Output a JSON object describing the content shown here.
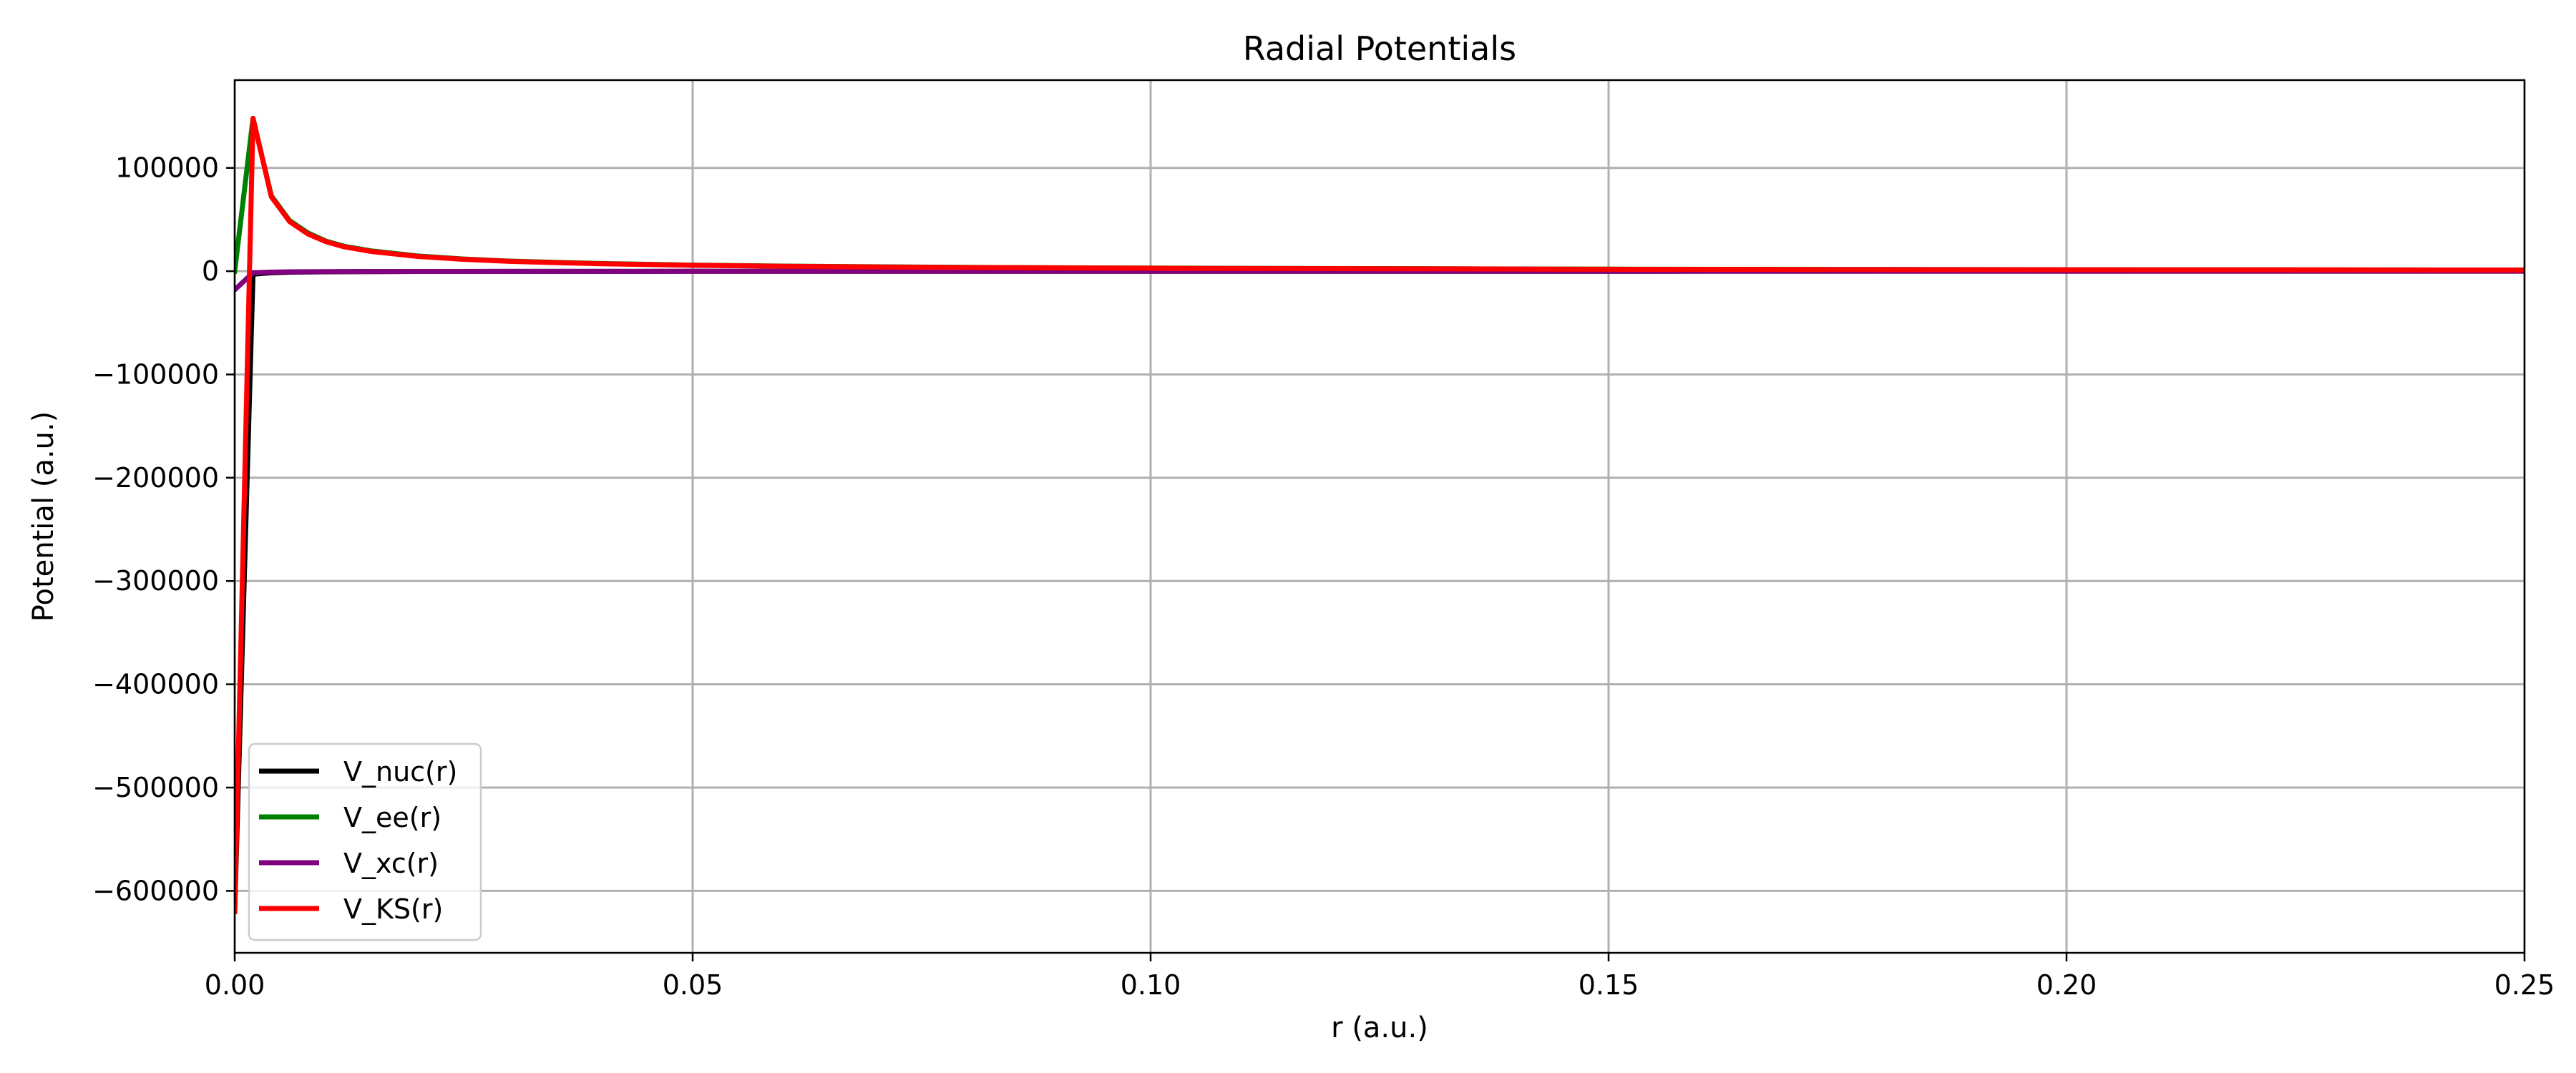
{
  "chart_data": {
    "type": "line",
    "title": "Radial Potentials",
    "xlabel": "r (a.u.)",
    "ylabel": "Potential (a.u.)",
    "xlim": [
      0.0,
      0.25
    ],
    "ylim": [
      -660000,
      185000
    ],
    "xticks": [
      0.0,
      0.05,
      0.1,
      0.15,
      0.2,
      0.25
    ],
    "xtick_labels": [
      "0.00",
      "0.05",
      "0.10",
      "0.15",
      "0.20",
      "0.25"
    ],
    "yticks": [
      100000,
      0,
      -100000,
      -200000,
      -300000,
      -400000,
      -500000,
      -600000
    ],
    "ytick_labels": [
      "100000",
      "0",
      "−100000",
      "−200000",
      "−300000",
      "−400000",
      "−500000",
      "−600000"
    ],
    "grid": true,
    "legend_position": "lower-left",
    "series": [
      {
        "name": "V_nuc(r)",
        "color": "#000000",
        "x": [
          0.0,
          0.002,
          0.004,
          0.006,
          0.008,
          0.01,
          0.015,
          0.02,
          0.03,
          0.05,
          0.1,
          0.15,
          0.2,
          0.25
        ],
        "y": [
          -620000,
          -3000,
          -1500,
          -1000,
          -750,
          -600,
          -400,
          -300,
          -200,
          -120,
          -60,
          -40,
          -30,
          -24
        ]
      },
      {
        "name": "V_ee(r)",
        "color": "#008000",
        "x": [
          0.0,
          0.002,
          0.004,
          0.006,
          0.008,
          0.01,
          0.012,
          0.015,
          0.02,
          0.025,
          0.03,
          0.04,
          0.05,
          0.06,
          0.08,
          0.1,
          0.15,
          0.2,
          0.25
        ],
        "y": [
          0,
          148000,
          73000,
          49000,
          37000,
          29000,
          24000,
          19500,
          14700,
          11800,
          9800,
          7400,
          5900,
          4900,
          3700,
          2950,
          1970,
          1470,
          1180
        ]
      },
      {
        "name": "V_xc(r)",
        "color": "#800080",
        "x": [
          0.0,
          0.002,
          0.004,
          0.006,
          0.01,
          0.02,
          0.05,
          0.1,
          0.15,
          0.2,
          0.25
        ],
        "y": [
          -18000,
          -1500,
          -900,
          -600,
          -400,
          -250,
          -120,
          -60,
          -40,
          -30,
          -24
        ]
      },
      {
        "name": "V_KS(r)",
        "color": "#ff0000",
        "x": [
          0.0,
          0.002,
          0.004,
          0.006,
          0.008,
          0.01,
          0.012,
          0.015,
          0.02,
          0.025,
          0.03,
          0.04,
          0.05,
          0.06,
          0.08,
          0.1,
          0.15,
          0.2,
          0.25
        ],
        "y": [
          -620000,
          148000,
          72000,
          48000,
          36000,
          28500,
          23500,
          19000,
          14300,
          11500,
          9500,
          7200,
          5700,
          4700,
          3550,
          2850,
          1900,
          1420,
          1140
        ]
      }
    ]
  }
}
